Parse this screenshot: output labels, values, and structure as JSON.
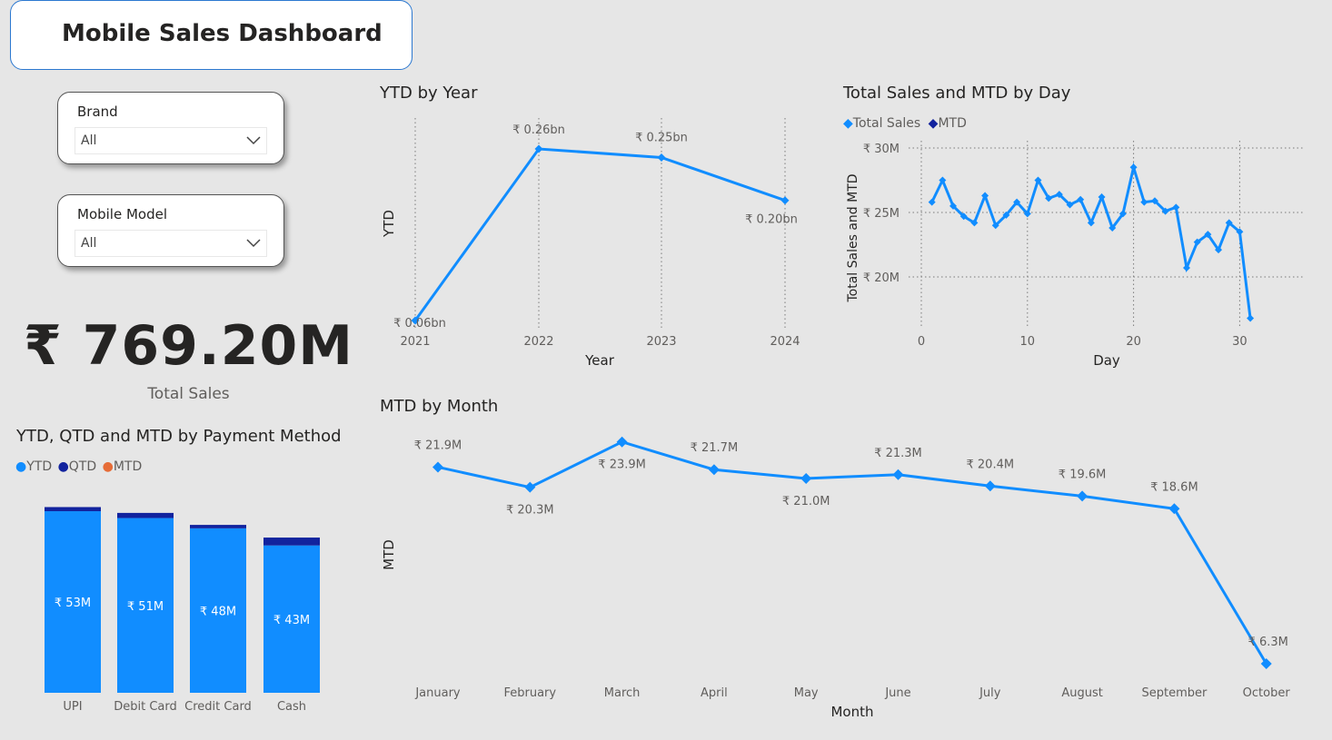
{
  "title": "Mobile Sales Dashboard",
  "slicers": [
    {
      "label": "Brand",
      "value": "All"
    },
    {
      "label": "Mobile Model",
      "value": "All"
    }
  ],
  "kpi": {
    "value": "₹ 769.20M",
    "label": "Total Sales"
  },
  "colors": {
    "ytd": "#118dff",
    "qtd": "#12239e",
    "mtd": "#e66c37",
    "line": "#118dff",
    "background": "#e6e6e6"
  },
  "chart_data": [
    {
      "id": "ytd_by_year",
      "type": "line",
      "title": "YTD by Year",
      "xlabel": "Year",
      "ylabel": "YTD",
      "categories": [
        "2021",
        "2022",
        "2023",
        "2024"
      ],
      "values": [
        0.06,
        0.26,
        0.25,
        0.2
      ],
      "data_labels": [
        "₹ 0.06bn",
        "₹ 0.26bn",
        "₹ 0.25bn",
        "₹ 0.20bn"
      ],
      "unit": "bn",
      "grid": "vertical dotted"
    },
    {
      "id": "sales_mtd_by_day",
      "type": "line",
      "title": "Total Sales and MTD by Day",
      "xlabel": "Day",
      "ylabel": "Total Sales and MTD",
      "legend": [
        "Total Sales",
        "MTD"
      ],
      "legend_position": "top-left",
      "x": [
        1,
        2,
        3,
        4,
        5,
        6,
        7,
        8,
        9,
        10,
        11,
        12,
        13,
        14,
        15,
        16,
        17,
        18,
        19,
        20,
        21,
        22,
        23,
        24,
        25,
        26,
        27,
        28,
        29,
        30,
        31
      ],
      "series": [
        {
          "name": "Total Sales",
          "values": [
            25.8,
            27.5,
            25.5,
            24.7,
            24.2,
            26.3,
            24.0,
            24.8,
            25.8,
            24.9,
            27.5,
            26.1,
            26.4,
            25.6,
            26.0,
            24.2,
            26.2,
            23.8,
            24.9,
            28.5,
            25.8,
            25.9,
            25.1,
            25.4,
            20.7,
            22.7,
            23.3,
            22.1,
            24.2,
            23.5,
            16.8
          ]
        }
      ],
      "xticks": [
        0,
        10,
        20,
        30
      ],
      "yticks": [
        "₹ 20M",
        "₹ 25M",
        "₹ 30M"
      ],
      "ylim": [
        16,
        30.5
      ],
      "xlim": [
        0,
        36
      ],
      "grid": "horizontal and vertical dotted"
    },
    {
      "id": "mtd_by_month",
      "type": "line",
      "title": "MTD by Month",
      "xlabel": "Month",
      "ylabel": "MTD",
      "categories": [
        "January",
        "February",
        "March",
        "April",
        "May",
        "June",
        "July",
        "August",
        "September",
        "October"
      ],
      "values": [
        21.9,
        20.3,
        23.9,
        21.7,
        21.0,
        21.3,
        20.4,
        19.6,
        18.6,
        6.3
      ],
      "data_labels": [
        "₹ 21.9M",
        "₹ 20.3M",
        "₹ 23.9M",
        "₹ 21.7M",
        "₹ 21.0M",
        "₹ 21.3M",
        "₹ 20.4M",
        "₹ 19.6M",
        "₹ 18.6M",
        "₹ 6.3M"
      ],
      "label_position": [
        "above",
        "below",
        "below",
        "above",
        "below",
        "above",
        "above",
        "above",
        "above",
        "above"
      ]
    },
    {
      "id": "payment_method",
      "type": "bar",
      "stacked": true,
      "title": "YTD, QTD and MTD by Payment Method",
      "legend": [
        "YTD",
        "QTD",
        "MTD"
      ],
      "legend_position": "top-left",
      "categories": [
        "UPI",
        "Debit Card",
        "Credit Card",
        "Cash"
      ],
      "series": [
        {
          "name": "YTD",
          "values": [
            53,
            51,
            48,
            43
          ],
          "data_labels": [
            "₹ 53M",
            "₹ 51M",
            "₹ 48M",
            "₹ 43M"
          ]
        },
        {
          "name": "QTD",
          "values": [
            1.2,
            1.5,
            1.0,
            2.3
          ]
        }
      ],
      "ymax": 55.5
    }
  ]
}
